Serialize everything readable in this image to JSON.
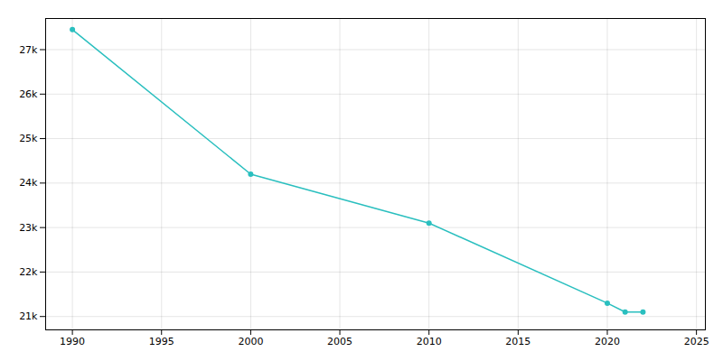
{
  "chart_data": {
    "type": "line",
    "x": [
      1990,
      2000,
      2010,
      2020,
      2021,
      2022
    ],
    "values": [
      27450,
      24200,
      23100,
      21300,
      21100,
      21100
    ],
    "color": "#2ABFBF",
    "marker": "circle",
    "xlim": [
      1988.5,
      2025.5
    ],
    "ylim": [
      20700,
      27700
    ],
    "xticks": [
      1990,
      1995,
      2000,
      2005,
      2010,
      2015,
      2020,
      2025
    ],
    "yticks": [
      {
        "value": 21000,
        "label": "21k"
      },
      {
        "value": 22000,
        "label": "22k"
      },
      {
        "value": 23000,
        "label": "23k"
      },
      {
        "value": 24000,
        "label": "24k"
      },
      {
        "value": 25000,
        "label": "25k"
      },
      {
        "value": 26000,
        "label": "26k"
      },
      {
        "value": 27000,
        "label": "27k"
      }
    ],
    "grid": true
  }
}
